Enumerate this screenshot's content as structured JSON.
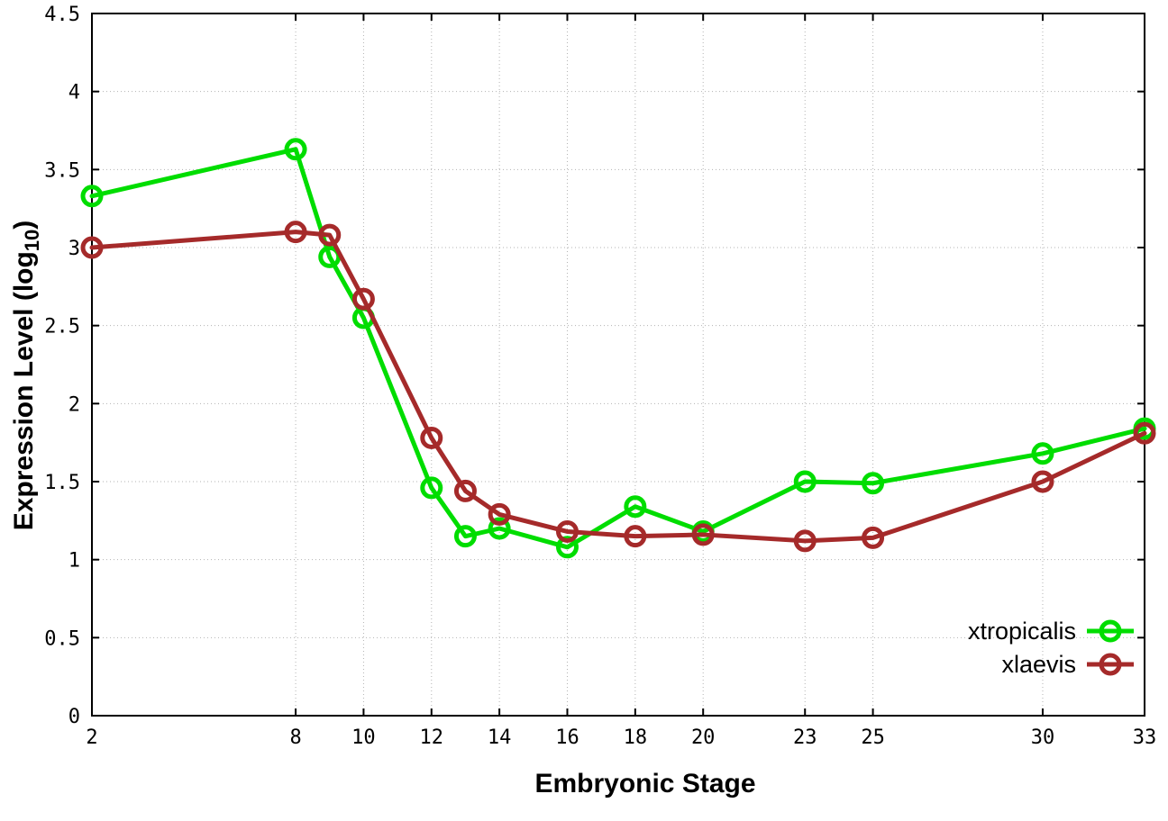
{
  "chart_data": {
    "type": "line",
    "title": "",
    "xlabel": "Embryonic Stage",
    "ylabel": {
      "text": "Expression Level (log",
      "sub": "10",
      "suffix": ")"
    },
    "x": [
      2,
      8,
      9,
      10,
      12,
      13,
      14,
      16,
      18,
      20,
      23,
      25,
      30,
      33
    ],
    "series": [
      {
        "name": "xtropicalis",
        "color": "#00dd00",
        "values": [
          3.33,
          3.63,
          2.94,
          2.55,
          1.46,
          1.15,
          1.2,
          1.08,
          1.34,
          1.18,
          1.5,
          1.49,
          1.68,
          1.84
        ]
      },
      {
        "name": "xlaevis",
        "color": "#a52a2a",
        "values": [
          3.0,
          3.1,
          3.08,
          2.67,
          1.78,
          1.44,
          1.29,
          1.18,
          1.15,
          1.16,
          1.12,
          1.14,
          1.5,
          1.81
        ]
      }
    ],
    "xticks": [
      2,
      8,
      10,
      12,
      14,
      16,
      18,
      20,
      23,
      25,
      30,
      33
    ],
    "xtick_labels": [
      "2",
      "8",
      "10",
      "12",
      "14",
      "16",
      "18",
      "20",
      "23",
      "25",
      "30",
      "33"
    ],
    "yticks": [
      0,
      0.5,
      1,
      1.5,
      2,
      2.5,
      3,
      3.5,
      4,
      4.5
    ],
    "ytick_labels": [
      "0",
      "0.5",
      "1",
      "1.5",
      "2",
      "2.5",
      "3",
      "3.5",
      "4",
      "4.5"
    ],
    "xlim": [
      2,
      33
    ],
    "ylim": [
      0,
      4.5
    ],
    "grid": true,
    "grid_color": "#b3b3b3",
    "axis_color": "#000000",
    "background": "#ffffff",
    "legend_position": "bottom-right"
  }
}
